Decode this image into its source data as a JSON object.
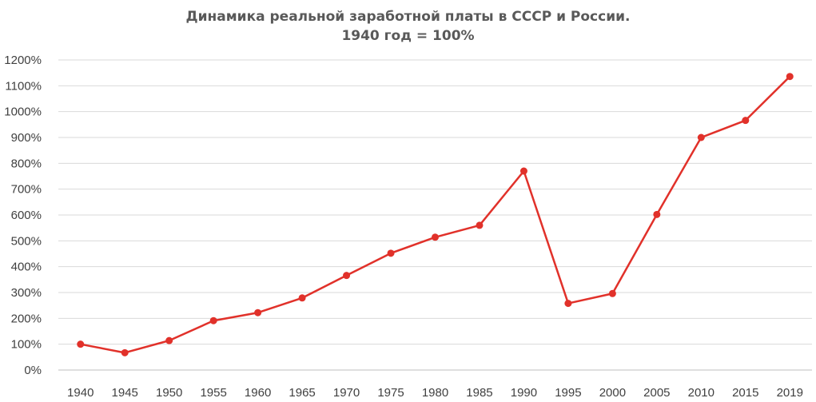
{
  "chart_data": {
    "type": "line",
    "title": "Динамика реальной заработной платы в СССР и России.",
    "subtitle": "1940 год = 100%",
    "xlabel": "",
    "ylabel": "",
    "categories": [
      "1940",
      "1945",
      "1950",
      "1955",
      "1960",
      "1965",
      "1970",
      "1975",
      "1980",
      "1985",
      "1990",
      "1995",
      "2000",
      "2005",
      "2010",
      "2015",
      "2019"
    ],
    "series": [
      {
        "values": [
          100,
          67,
          114,
          191,
          222,
          279,
          366,
          452,
          514,
          560,
          770,
          258,
          296,
          602,
          900,
          966,
          1136
        ]
      }
    ],
    "ylim": [
      0,
      1200
    ],
    "yticks": [
      "0%",
      "100%",
      "200%",
      "300%",
      "400%",
      "500%",
      "600%",
      "700%",
      "800%",
      "900%",
      "1000%",
      "1100%",
      "1200%"
    ],
    "grid": true,
    "line_color": "#e1312a",
    "grid_color": "#d9d9d9"
  }
}
